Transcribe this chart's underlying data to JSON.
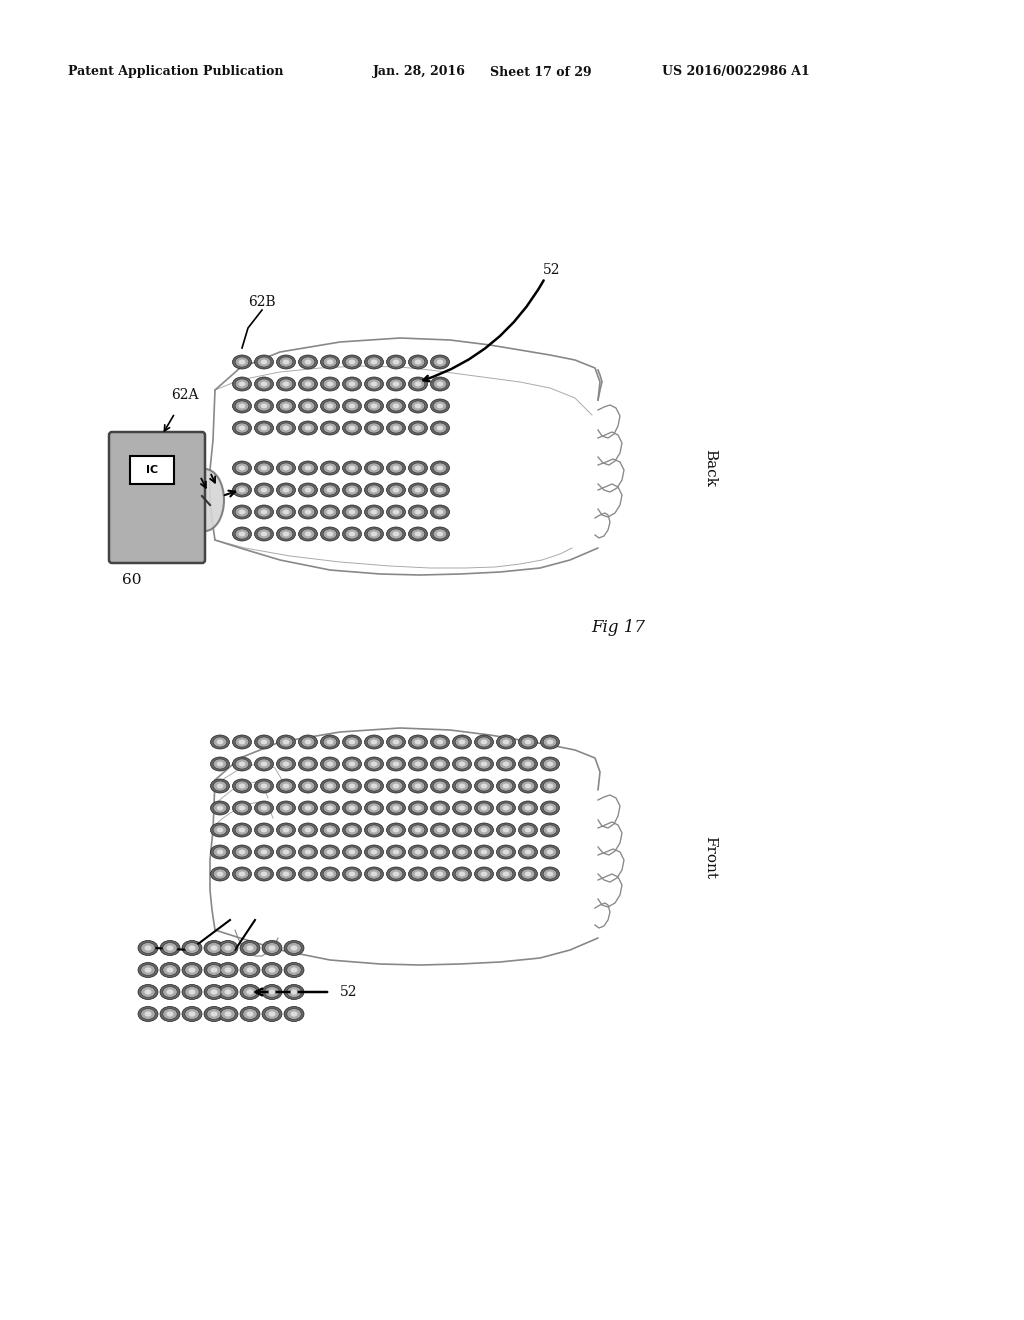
{
  "bg_color": "#ffffff",
  "header_text": "Patent Application Publication",
  "header_date": "Jan. 28, 2016",
  "header_sheet": "Sheet 17 of 29",
  "header_patent": "US 2016/0022986 A1",
  "fig_label": "Fig 17",
  "back_label": "Back",
  "front_label": "Front",
  "label_60": "60",
  "label_62A": "62A",
  "label_62B": "62B",
  "label_52_back": "52",
  "label_52_front": "52",
  "text_color": "#111111",
  "body_edge": "#888888",
  "electrode_dark": "#555555",
  "electrode_mid": "#999999",
  "electrode_light": "#cccccc",
  "device_fill": "#b0b0b0",
  "device_edge": "#444444"
}
